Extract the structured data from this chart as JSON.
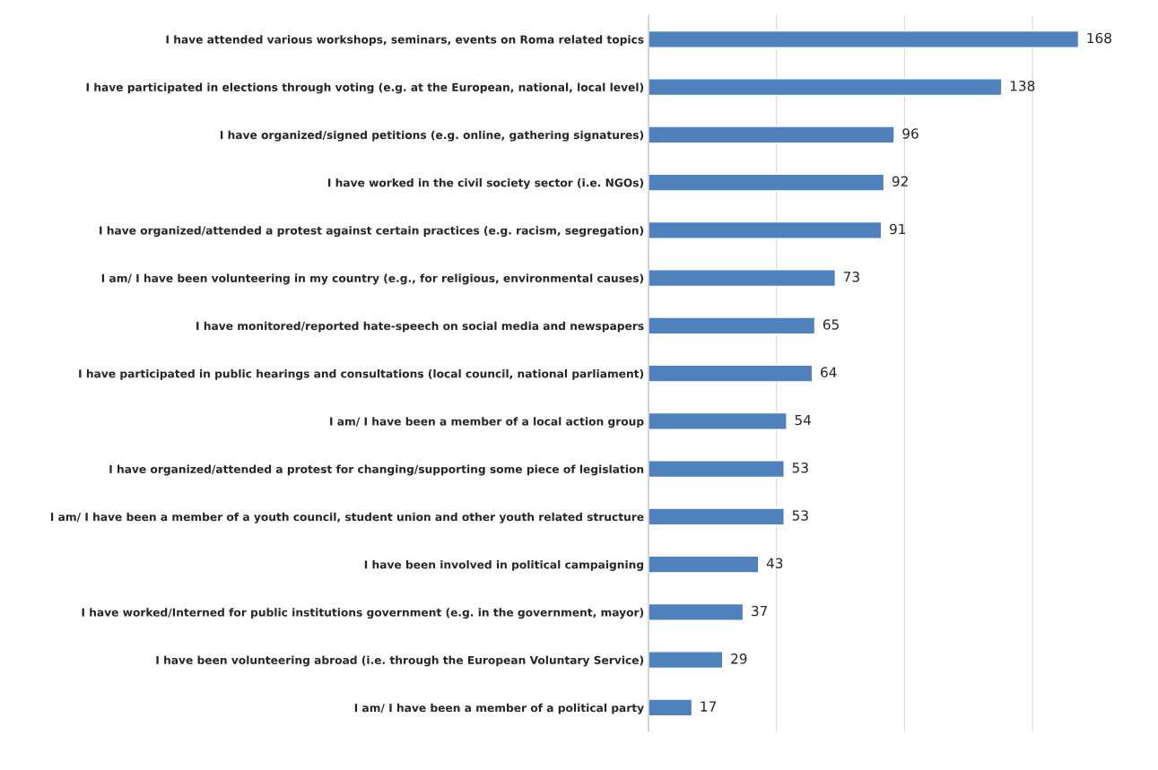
{
  "chart_data": {
    "type": "bar",
    "orientation": "horizontal",
    "data_labels": true,
    "grid": "x",
    "color": "#4f81bd",
    "xticks": [
      {
        "value": 0,
        "label": null
      },
      {
        "value": 50,
        "label": null
      },
      {
        "value": 100,
        "label": null
      },
      {
        "value": 150,
        "label": null
      }
    ],
    "categories": [
      "I have attended various workshops, seminars, events on Roma related topics",
      "I have participated in elections through voting (e.g. at the European, national, local level)",
      "I have organized/signed petitions (e.g. online, gathering signatures)",
      "I have worked in the civil society sector (i.e. NGOs)",
      "I have organized/attended a protest against certain practices (e.g. racism, segregation)",
      "I am/ I have been volunteering in my country (e.g., for religious, environmental causes)",
      "I have monitored/reported hate-speech on social media and newspapers",
      "I have participated in public hearings and consultations (local council, national parliament)",
      "I am/ I have been a member of a local action group",
      "I have organized/attended a protest for changing/supporting some piece of legislation",
      "I am/ I have been a member of a youth council, student union and other youth related structure",
      "I have been involved in political campaigning",
      "I have worked/Interned for public institutions government (e.g. in the government, mayor)",
      "I have been volunteering abroad (i.e. through the European Voluntary Service)",
      "I am/ I have been a member of a political party"
    ],
    "values": [
      168,
      138,
      96,
      92,
      91,
      73,
      65,
      64,
      54,
      53,
      53,
      43,
      37,
      29,
      17
    ]
  }
}
